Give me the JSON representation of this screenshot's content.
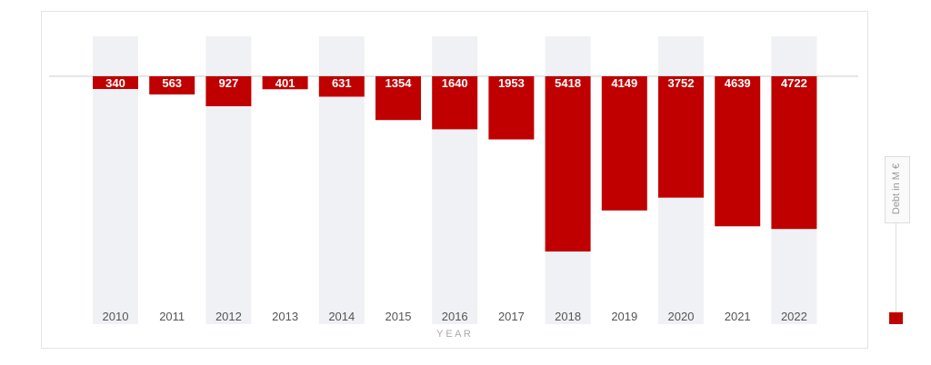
{
  "colors": {
    "bar": "#c00000",
    "band": "#f0f1f4",
    "baseline": "#cccccc"
  },
  "chart_data": {
    "type": "bar",
    "categories": [
      "2010",
      "2011",
      "2012",
      "2013",
      "2014",
      "2015",
      "2016",
      "2017",
      "2018",
      "2019",
      "2020",
      "2021",
      "2022"
    ],
    "series": [
      {
        "name": "Debt in M €",
        "values": [
          340,
          563,
          927,
          401,
          631,
          1354,
          1640,
          1953,
          5418,
          4149,
          3752,
          4639,
          4722
        ]
      }
    ],
    "xlabel": "Y E A R",
    "ylabel": "",
    "direction": "downward",
    "grid": false,
    "legend_position": "right"
  },
  "legend": {
    "label": "Debt in M €"
  },
  "axis": {
    "x_title": "Y  E  A  R"
  }
}
